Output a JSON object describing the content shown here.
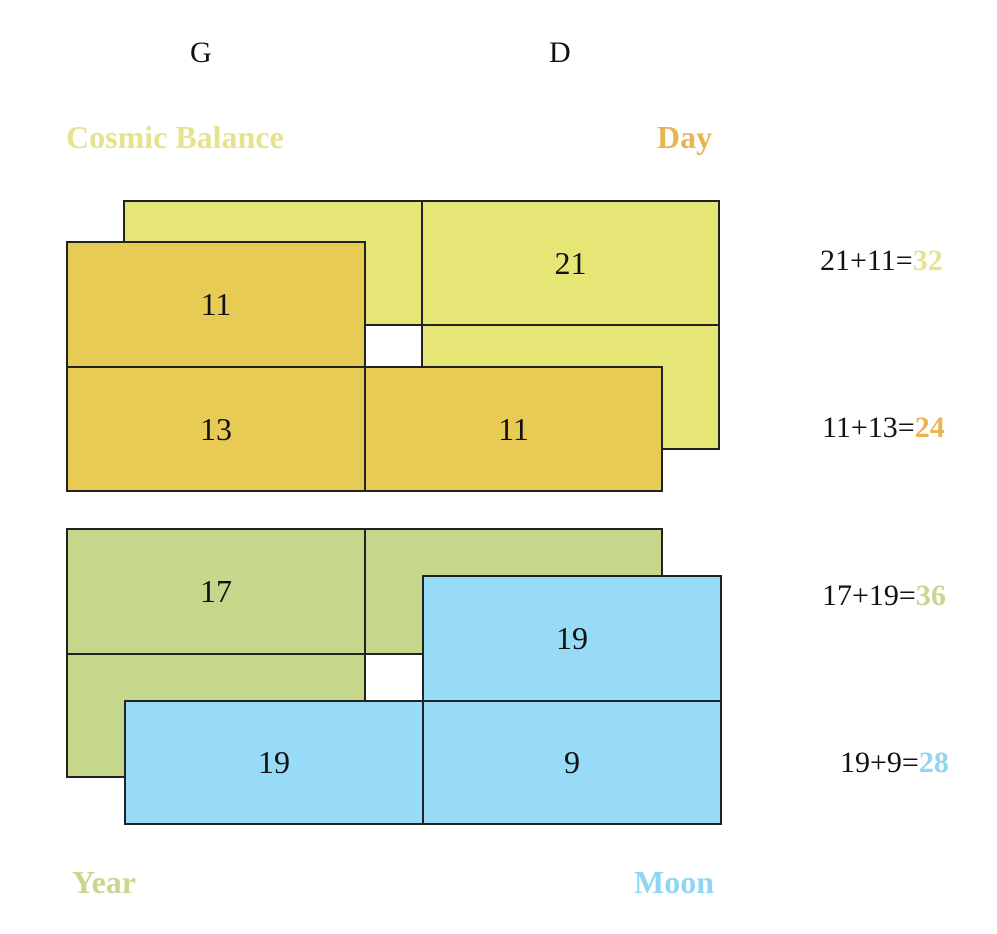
{
  "columns": {
    "left": "G",
    "right": "D"
  },
  "labels": {
    "top_left": "Cosmic Balance",
    "top_right": "Day",
    "bottom_left": "Year",
    "bottom_right": "Moon"
  },
  "colors": {
    "cosmic_balance": "#e6e676",
    "day": "#e8cb55",
    "year": "#c5d78a",
    "moon": "#97dbf6",
    "label_cosmic_balance": "#e6e38e",
    "label_day": "#e8b454",
    "label_year": "#c8d68e",
    "label_moon": "#8fd6f3"
  },
  "cells": {
    "cosmic_balance_top_right": "21",
    "day_top_left": "11",
    "day_bottom_left": "13",
    "day_bottom_right": "11",
    "year_top_left": "17",
    "moon_top_right": "19",
    "moon_bottom_left": "19",
    "moon_bottom_right": "9"
  },
  "equations": [
    {
      "expr": "21+11=",
      "result": "32"
    },
    {
      "expr": "11+13=",
      "result": "24"
    },
    {
      "expr": "17+19=",
      "result": "36"
    },
    {
      "expr": "19+9=",
      "result": "28"
    }
  ]
}
